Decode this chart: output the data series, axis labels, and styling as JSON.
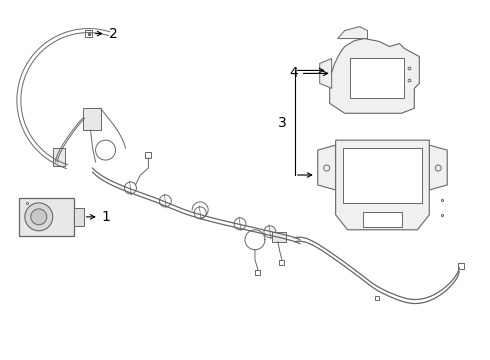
{
  "background_color": "#ffffff",
  "line_color": "#666666",
  "fig_width": 4.9,
  "fig_height": 3.6,
  "dpi": 100
}
